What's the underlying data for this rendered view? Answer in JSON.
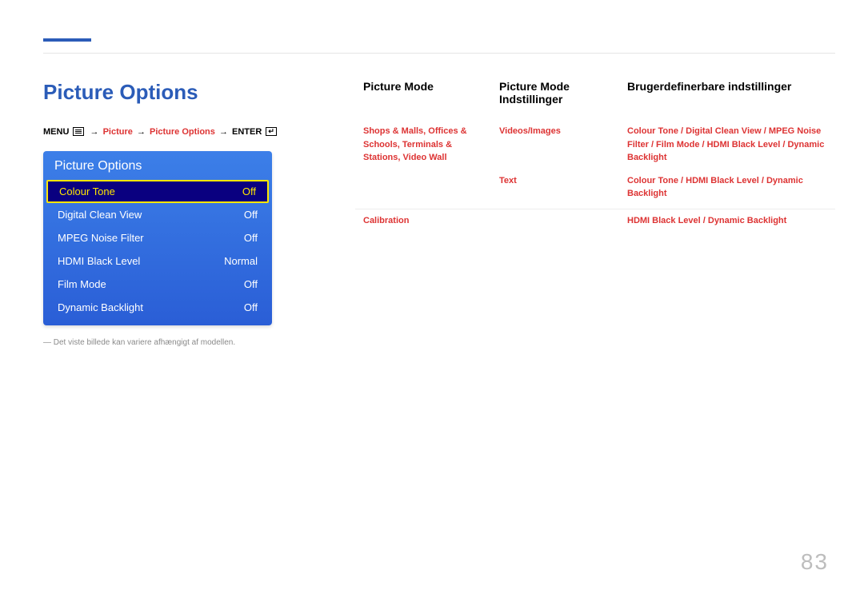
{
  "pageTitle": "Picture Options",
  "breadcrumb": {
    "menu": "MENU",
    "p1": "Picture",
    "p2": "Picture Options",
    "enter": "ENTER"
  },
  "menu": {
    "header": "Picture Options",
    "items": [
      {
        "label": "Colour Tone",
        "value": "Off",
        "selected": true
      },
      {
        "label": "Digital Clean View",
        "value": "Off",
        "selected": false
      },
      {
        "label": "MPEG Noise Filter",
        "value": "Off",
        "selected": false
      },
      {
        "label": "HDMI Black Level",
        "value": "Normal",
        "selected": false
      },
      {
        "label": "Film Mode",
        "value": "Off",
        "selected": false
      },
      {
        "label": "Dynamic Backlight",
        "value": "Off",
        "selected": false
      }
    ]
  },
  "footnote": "― Det viste billede kan variere afhængigt af modellen.",
  "table": {
    "headers": {
      "col1": "Picture Mode",
      "col2": "Picture Mode Indstillinger",
      "col3": "Brugerdefinerbare indstillinger"
    },
    "rows": [
      {
        "c1": "Shops & Malls, Offices & Schools, Terminals & Stations, Video Wall",
        "c2": "Videos/Images",
        "c3": "Colour Tone / Digital Clean View / MPEG Noise Filter / Film Mode / HDMI Black Level / Dynamic Backlight"
      },
      {
        "c1": "",
        "c2": "Text",
        "c3": "Colour Tone / HDMI Black Level / Dynamic Backlight"
      },
      {
        "c1": "Calibration",
        "c2": "",
        "c3": "HDMI Black Level / Dynamic Backlight"
      }
    ]
  },
  "pageNumber": "83"
}
